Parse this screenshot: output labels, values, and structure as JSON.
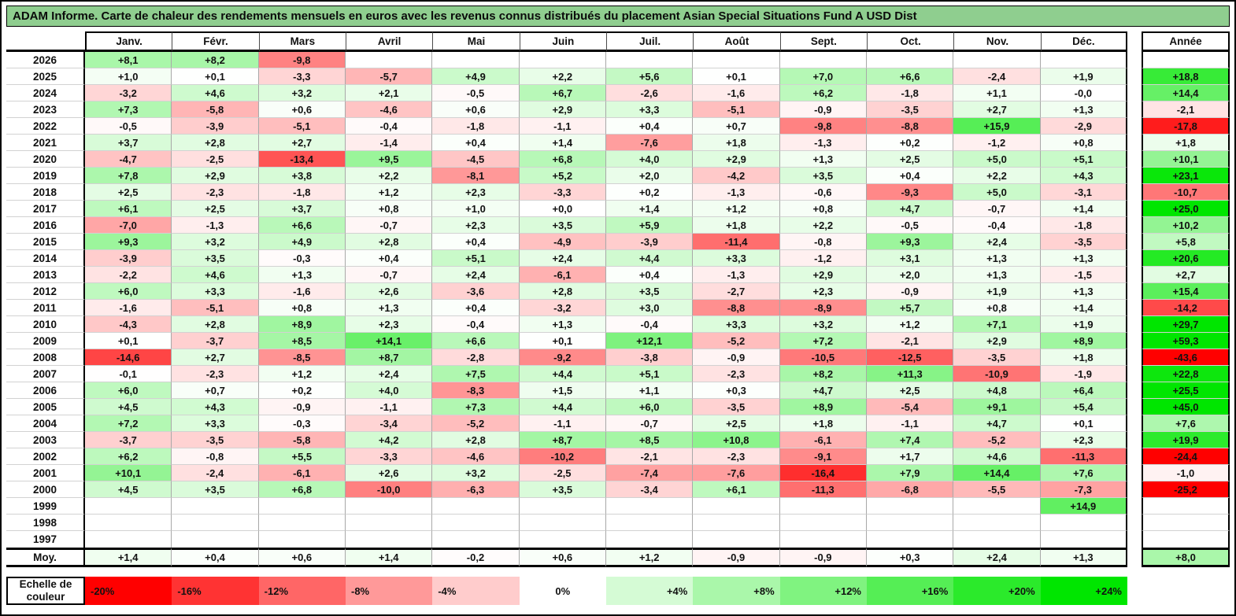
{
  "title": "ADAM Informe. Carte de chaleur des rendements mensuels en euros avec les revenus connus distribués du placement Asian Special Situations Fund A USD Dist",
  "colors": {
    "title_bg": "#8FCE8F",
    "heat_negative_max": "#FF0000",
    "heat_positive_max": "#00E600",
    "heat_zero": "#FFFFFF"
  },
  "heat_limits": {
    "negative_pct": 20,
    "positive_pct": 24
  },
  "chart_data": {
    "type": "heatmap",
    "columns": [
      "Janv.",
      "Févr.",
      "Mars",
      "Avril",
      "Mai",
      "Juin",
      "Juil.",
      "Août",
      "Sept.",
      "Oct.",
      "Nov.",
      "Déc."
    ],
    "annee_label": "Année",
    "rows": [
      {
        "year": "2026",
        "values": [
          "+8,1",
          "+8,2",
          "-9,8",
          "",
          "",
          "",
          "",
          "",
          "",
          "",
          "",
          ""
        ],
        "annee": ""
      },
      {
        "year": "2025",
        "values": [
          "+1,0",
          "+0,1",
          "-3,3",
          "-5,7",
          "+4,9",
          "+2,2",
          "+5,6",
          "+0,1",
          "+7,0",
          "+6,6",
          "-2,4",
          "+1,9"
        ],
        "annee": "+18,8"
      },
      {
        "year": "2024",
        "values": [
          "-3,2",
          "+4,6",
          "+3,2",
          "+2,1",
          "-0,5",
          "+6,7",
          "-2,6",
          "-1,6",
          "+6,2",
          "-1,8",
          "+1,1",
          "-0,0"
        ],
        "annee": "+14,4"
      },
      {
        "year": "2023",
        "values": [
          "+7,3",
          "-5,8",
          "+0,6",
          "-4,6",
          "+0,6",
          "+2,9",
          "+3,3",
          "-5,1",
          "-0,9",
          "-3,5",
          "+2,7",
          "+1,3"
        ],
        "annee": "-2,1"
      },
      {
        "year": "2022",
        "values": [
          "-0,5",
          "-3,9",
          "-5,1",
          "-0,4",
          "-1,8",
          "-1,1",
          "+0,4",
          "+0,7",
          "-9,8",
          "-8,8",
          "+15,9",
          "-2,9"
        ],
        "annee": "-17,8"
      },
      {
        "year": "2021",
        "values": [
          "+3,7",
          "+2,8",
          "+2,7",
          "-1,4",
          "+0,4",
          "+1,4",
          "-7,6",
          "+1,8",
          "-1,3",
          "+0,2",
          "-1,2",
          "+0,8"
        ],
        "annee": "+1,8"
      },
      {
        "year": "2020",
        "values": [
          "-4,7",
          "-2,5",
          "-13,4",
          "+9,5",
          "-4,5",
          "+6,8",
          "+4,0",
          "+2,9",
          "+1,3",
          "+2,5",
          "+5,0",
          "+5,1"
        ],
        "annee": "+10,1"
      },
      {
        "year": "2019",
        "values": [
          "+7,8",
          "+2,9",
          "+3,8",
          "+2,2",
          "-8,1",
          "+5,2",
          "+2,0",
          "-4,2",
          "+3,5",
          "+0,4",
          "+2,2",
          "+4,3"
        ],
        "annee": "+23,1"
      },
      {
        "year": "2018",
        "values": [
          "+2,5",
          "-2,3",
          "-1,8",
          "+1,2",
          "+2,3",
          "-3,3",
          "+0,2",
          "-1,3",
          "-0,6",
          "-9,3",
          "+5,0",
          "-3,1"
        ],
        "annee": "-10,7"
      },
      {
        "year": "2017",
        "values": [
          "+6,1",
          "+2,5",
          "+3,7",
          "+0,8",
          "+1,0",
          "+0,0",
          "+1,4",
          "+1,2",
          "+0,8",
          "+4,7",
          "-0,7",
          "+1,4"
        ],
        "annee": "+25,0"
      },
      {
        "year": "2016",
        "values": [
          "-7,0",
          "-1,3",
          "+6,6",
          "-0,7",
          "+2,3",
          "+3,5",
          "+5,9",
          "+1,8",
          "+2,2",
          "-0,5",
          "-0,4",
          "-1,8"
        ],
        "annee": "+10,2"
      },
      {
        "year": "2015",
        "values": [
          "+9,3",
          "+3,2",
          "+4,9",
          "+2,8",
          "+0,4",
          "-4,9",
          "-3,9",
          "-11,4",
          "-0,8",
          "+9,3",
          "+2,4",
          "-3,5"
        ],
        "annee": "+5,8"
      },
      {
        "year": "2014",
        "values": [
          "-3,9",
          "+3,5",
          "-0,3",
          "+0,4",
          "+5,1",
          "+2,4",
          "+4,4",
          "+3,3",
          "-1,2",
          "+3,1",
          "+1,3",
          "+1,3"
        ],
        "annee": "+20,6"
      },
      {
        "year": "2013",
        "values": [
          "-2,2",
          "+4,6",
          "+1,3",
          "-0,7",
          "+2,4",
          "-6,1",
          "+0,4",
          "-1,3",
          "+2,9",
          "+2,0",
          "+1,3",
          "-1,5"
        ],
        "annee": "+2,7"
      },
      {
        "year": "2012",
        "values": [
          "+6,0",
          "+3,3",
          "-1,6",
          "+2,6",
          "-3,6",
          "+2,8",
          "+3,5",
          "-2,7",
          "+2,3",
          "-0,9",
          "+1,9",
          "+1,3"
        ],
        "annee": "+15,4"
      },
      {
        "year": "2011",
        "values": [
          "-1,6",
          "-5,1",
          "+0,8",
          "+1,3",
          "+0,4",
          "-3,2",
          "+3,0",
          "-8,8",
          "-8,9",
          "+5,7",
          "+0,8",
          "+1,4"
        ],
        "annee": "-14,2"
      },
      {
        "year": "2010",
        "values": [
          "-4,3",
          "+2,8",
          "+8,9",
          "+2,3",
          "-0,4",
          "+1,3",
          "-0,4",
          "+3,3",
          "+3,2",
          "+1,2",
          "+7,1",
          "+1,9"
        ],
        "annee": "+29,7"
      },
      {
        "year": "2009",
        "values": [
          "+0,1",
          "-3,7",
          "+8,5",
          "+14,1",
          "+6,6",
          "+0,1",
          "+12,1",
          "-5,2",
          "+7,2",
          "-2,1",
          "+2,9",
          "+8,9"
        ],
        "annee": "+59,3"
      },
      {
        "year": "2008",
        "values": [
          "-14,6",
          "+2,7",
          "-8,5",
          "+8,7",
          "-2,8",
          "-9,2",
          "-3,8",
          "-0,9",
          "-10,5",
          "-12,5",
          "-3,5",
          "+1,8"
        ],
        "annee": "-43,6"
      },
      {
        "year": "2007",
        "values": [
          "-0,1",
          "-2,3",
          "+1,2",
          "+2,4",
          "+7,5",
          "+4,4",
          "+5,1",
          "-2,3",
          "+8,2",
          "+11,3",
          "-10,9",
          "-1,9"
        ],
        "annee": "+22,8"
      },
      {
        "year": "2006",
        "values": [
          "+6,0",
          "+0,7",
          "+0,2",
          "+4,0",
          "-8,3",
          "+1,5",
          "+1,1",
          "+0,3",
          "+4,7",
          "+2,5",
          "+4,8",
          "+6,4"
        ],
        "annee": "+25,5"
      },
      {
        "year": "2005",
        "values": [
          "+4,5",
          "+4,3",
          "-0,9",
          "-1,1",
          "+7,3",
          "+4,4",
          "+6,0",
          "-3,5",
          "+8,9",
          "-5,4",
          "+9,1",
          "+5,4"
        ],
        "annee": "+45,0"
      },
      {
        "year": "2004",
        "values": [
          "+7,2",
          "+3,3",
          "-0,3",
          "-3,4",
          "-5,2",
          "-1,1",
          "-0,7",
          "+2,5",
          "+1,8",
          "-1,1",
          "+4,7",
          "+0,1"
        ],
        "annee": "+7,6"
      },
      {
        "year": "2003",
        "values": [
          "-3,7",
          "-3,5",
          "-5,8",
          "+4,2",
          "+2,8",
          "+8,7",
          "+8,5",
          "+10,8",
          "-6,1",
          "+7,4",
          "-5,2",
          "+2,3"
        ],
        "annee": "+19,9"
      },
      {
        "year": "2002",
        "values": [
          "+6,2",
          "-0,8",
          "+5,5",
          "-3,3",
          "-4,6",
          "-10,2",
          "-2,1",
          "-2,3",
          "-9,1",
          "+1,7",
          "+4,6",
          "-11,3"
        ],
        "annee": "-24,4"
      },
      {
        "year": "2001",
        "values": [
          "+10,1",
          "-2,4",
          "-6,1",
          "+2,6",
          "+3,2",
          "-2,5",
          "-7,4",
          "-7,6",
          "-16,4",
          "+7,9",
          "+14,4",
          "+7,6"
        ],
        "annee": "-1,0"
      },
      {
        "year": "2000",
        "values": [
          "+4,5",
          "+3,5",
          "+6,8",
          "-10,0",
          "-6,3",
          "+3,5",
          "-3,4",
          "+6,1",
          "-11,3",
          "-6,8",
          "-5,5",
          "-7,3"
        ],
        "annee": "-25,2"
      },
      {
        "year": "1999",
        "values": [
          "",
          "",
          "",
          "",
          "",
          "",
          "",
          "",
          "",
          "",
          "",
          "+14,9"
        ],
        "annee": ""
      },
      {
        "year": "1998",
        "values": [
          "",
          "",
          "",
          "",
          "",
          "",
          "",
          "",
          "",
          "",
          "",
          ""
        ],
        "annee": ""
      },
      {
        "year": "1997",
        "values": [
          "",
          "",
          "",
          "",
          "",
          "",
          "",
          "",
          "",
          "",
          "",
          ""
        ],
        "annee": ""
      }
    ],
    "moy_row": {
      "label": "Moy.",
      "values": [
        "+1,4",
        "+0,4",
        "+0,6",
        "+1,4",
        "-0,2",
        "+0,6",
        "+1,2",
        "-0,9",
        "-0,9",
        "+0,3",
        "+2,4",
        "+1,3"
      ],
      "annee": "+8,0"
    },
    "scale": {
      "label_lines": [
        "Echelle de",
        "couleur"
      ],
      "stops": [
        {
          "label": "-20%",
          "value": -20
        },
        {
          "label": "-16%",
          "value": -16
        },
        {
          "label": "-12%",
          "value": -12
        },
        {
          "label": "-8%",
          "value": -8
        },
        {
          "label": "-4%",
          "value": -4
        },
        {
          "label": "0%",
          "value": 0
        },
        {
          "label": "+4%",
          "value": 4
        },
        {
          "label": "+8%",
          "value": 8
        },
        {
          "label": "+12%",
          "value": 12
        },
        {
          "label": "+16%",
          "value": 16
        },
        {
          "label": "+20%",
          "value": 20
        },
        {
          "label": "+24%",
          "value": 24
        }
      ]
    }
  }
}
